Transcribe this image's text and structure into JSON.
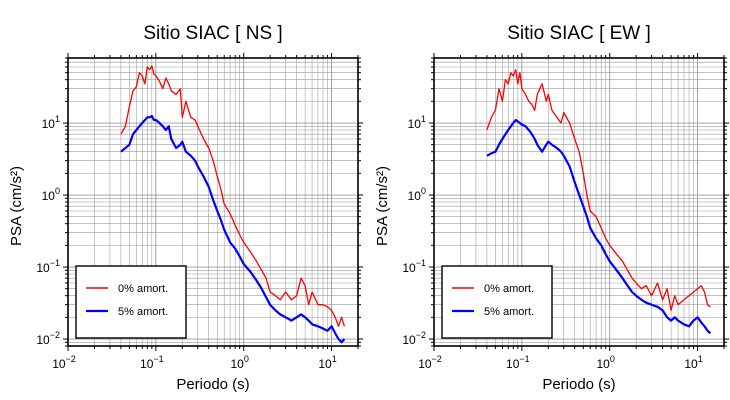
{
  "chart_data": [
    {
      "type": "line",
      "title": "Sitio SIAC [ NS ]",
      "xlabel": "Periodo (s)",
      "ylabel": "PSA (cm/s²)",
      "x_scale": "log",
      "y_scale": "log",
      "xlim": [
        0.01,
        20
      ],
      "ylim": [
        0.008,
        80
      ],
      "grid": true,
      "legend_position": "lower-left",
      "x_ticks": [
        {
          "value": 0.01,
          "base": "10",
          "exp": "−2"
        },
        {
          "value": 0.1,
          "base": "10",
          "exp": "−1"
        },
        {
          "value": 1,
          "base": "10",
          "exp": "0"
        },
        {
          "value": 10,
          "base": "10",
          "exp": "1"
        }
      ],
      "y_ticks": [
        {
          "value": 0.01,
          "base": "10",
          "exp": "−2"
        },
        {
          "value": 0.1,
          "base": "10",
          "exp": "−1"
        },
        {
          "value": 1,
          "base": "10",
          "exp": "0"
        },
        {
          "value": 10,
          "base": "10",
          "exp": "1"
        }
      ],
      "series": [
        {
          "name": "0% amort.",
          "color": "#ff0000",
          "x": [
            0.04,
            0.045,
            0.05,
            0.055,
            0.06,
            0.065,
            0.07,
            0.075,
            0.08,
            0.085,
            0.09,
            0.095,
            0.1,
            0.11,
            0.12,
            0.13,
            0.14,
            0.15,
            0.17,
            0.19,
            0.2,
            0.22,
            0.25,
            0.28,
            0.3,
            0.35,
            0.4,
            0.45,
            0.5,
            0.55,
            0.6,
            0.7,
            0.8,
            0.9,
            1.0,
            1.2,
            1.4,
            1.6,
            1.8,
            2.0,
            2.3,
            2.6,
            3.0,
            3.5,
            4.0,
            4.5,
            5.0,
            5.5,
            6.0,
            7.0,
            8.0,
            9.0,
            10.0,
            11.0,
            12.0,
            13.0,
            14.0
          ],
          "y": [
            7,
            9,
            17,
            28,
            32,
            50,
            45,
            35,
            60,
            55,
            62,
            48,
            45,
            38,
            30,
            42,
            35,
            28,
            25,
            30,
            12,
            20,
            12,
            11,
            9,
            6,
            4.5,
            3.0,
            1.8,
            1.2,
            0.75,
            0.55,
            0.38,
            0.28,
            0.22,
            0.16,
            0.12,
            0.09,
            0.07,
            0.045,
            0.04,
            0.035,
            0.045,
            0.035,
            0.04,
            0.07,
            0.055,
            0.03,
            0.045,
            0.03,
            0.03,
            0.028,
            0.025,
            0.02,
            0.015,
            0.02,
            0.015
          ]
        },
        {
          "name": "5% amort.",
          "color": "#0000ff",
          "x": [
            0.04,
            0.045,
            0.05,
            0.055,
            0.06,
            0.065,
            0.07,
            0.075,
            0.08,
            0.085,
            0.09,
            0.095,
            0.1,
            0.11,
            0.12,
            0.13,
            0.14,
            0.15,
            0.17,
            0.19,
            0.2,
            0.22,
            0.25,
            0.28,
            0.3,
            0.35,
            0.4,
            0.45,
            0.5,
            0.55,
            0.6,
            0.7,
            0.8,
            0.9,
            1.0,
            1.2,
            1.4,
            1.6,
            1.8,
            2.0,
            2.3,
            2.6,
            3.0,
            3.5,
            4.0,
            4.5,
            5.0,
            5.5,
            6.0,
            7.0,
            8.0,
            9.0,
            10.0,
            11.0,
            12.0,
            13.0,
            14.0
          ],
          "y": [
            4,
            4.5,
            5,
            7,
            8,
            9,
            10,
            11,
            12,
            12,
            12.5,
            11,
            11,
            10,
            9,
            8,
            9,
            6,
            4.5,
            5,
            5.5,
            4,
            3.5,
            3.0,
            2.5,
            1.8,
            1.3,
            0.85,
            0.6,
            0.45,
            0.33,
            0.22,
            0.18,
            0.14,
            0.11,
            0.085,
            0.065,
            0.05,
            0.038,
            0.03,
            0.025,
            0.022,
            0.02,
            0.018,
            0.02,
            0.022,
            0.02,
            0.018,
            0.016,
            0.015,
            0.014,
            0.013,
            0.015,
            0.012,
            0.01,
            0.009,
            0.01
          ]
        }
      ]
    },
    {
      "type": "line",
      "title": "Sitio SIAC [ EW ]",
      "xlabel": "Periodo (s)",
      "ylabel": "PSA (cm/s²)",
      "x_scale": "log",
      "y_scale": "log",
      "xlim": [
        0.01,
        20
      ],
      "ylim": [
        0.008,
        80
      ],
      "grid": true,
      "legend_position": "lower-left",
      "x_ticks": [
        {
          "value": 0.01,
          "base": "10",
          "exp": "−2"
        },
        {
          "value": 0.1,
          "base": "10",
          "exp": "−1"
        },
        {
          "value": 1,
          "base": "10",
          "exp": "0"
        },
        {
          "value": 10,
          "base": "10",
          "exp": "1"
        }
      ],
      "y_ticks": [
        {
          "value": 0.01,
          "base": "10",
          "exp": "−2"
        },
        {
          "value": 0.1,
          "base": "10",
          "exp": "−1"
        },
        {
          "value": 1,
          "base": "10",
          "exp": "0"
        },
        {
          "value": 10,
          "base": "10",
          "exp": "1"
        }
      ],
      "series": [
        {
          "name": "0% amort.",
          "color": "#ff0000",
          "x": [
            0.04,
            0.045,
            0.05,
            0.055,
            0.06,
            0.065,
            0.07,
            0.075,
            0.08,
            0.085,
            0.09,
            0.095,
            0.1,
            0.11,
            0.12,
            0.13,
            0.14,
            0.15,
            0.17,
            0.19,
            0.2,
            0.22,
            0.25,
            0.28,
            0.3,
            0.35,
            0.4,
            0.45,
            0.5,
            0.55,
            0.6,
            0.7,
            0.8,
            0.9,
            1.0,
            1.2,
            1.4,
            1.6,
            1.8,
            2.0,
            2.3,
            2.6,
            3.0,
            3.5,
            4.0,
            4.5,
            5.0,
            5.5,
            6.0,
            7.0,
            8.0,
            9.0,
            10.0,
            11.0,
            12.0,
            13.0,
            14.0
          ],
          "y": [
            8,
            12,
            15,
            30,
            20,
            40,
            35,
            50,
            45,
            55,
            35,
            50,
            30,
            25,
            20,
            18,
            15,
            25,
            35,
            20,
            25,
            15,
            12,
            10,
            14,
            10,
            6,
            4,
            2.0,
            1.0,
            0.6,
            0.5,
            0.35,
            0.25,
            0.2,
            0.15,
            0.12,
            0.09,
            0.07,
            0.06,
            0.05,
            0.055,
            0.04,
            0.06,
            0.035,
            0.05,
            0.025,
            0.04,
            0.03,
            0.035,
            0.04,
            0.045,
            0.05,
            0.055,
            0.045,
            0.03,
            0.028
          ]
        },
        {
          "name": "5% amort.",
          "color": "#0000ff",
          "x": [
            0.04,
            0.045,
            0.05,
            0.055,
            0.06,
            0.065,
            0.07,
            0.075,
            0.08,
            0.085,
            0.09,
            0.095,
            0.1,
            0.11,
            0.12,
            0.13,
            0.14,
            0.15,
            0.17,
            0.19,
            0.2,
            0.22,
            0.25,
            0.28,
            0.3,
            0.35,
            0.4,
            0.45,
            0.5,
            0.55,
            0.6,
            0.7,
            0.8,
            0.9,
            1.0,
            1.2,
            1.4,
            1.6,
            1.8,
            2.0,
            2.3,
            2.6,
            3.0,
            3.5,
            4.0,
            4.5,
            5.0,
            5.5,
            6.0,
            7.0,
            8.0,
            9.0,
            10.0,
            11.0,
            12.0,
            13.0,
            14.0
          ],
          "y": [
            3.5,
            3.8,
            4,
            5,
            6,
            7,
            8,
            9,
            10,
            11,
            10.5,
            10,
            9.5,
            9,
            8,
            7,
            6,
            5,
            4,
            5,
            5.5,
            5,
            4.5,
            4,
            3.5,
            2.5,
            1.5,
            1.0,
            0.7,
            0.5,
            0.35,
            0.25,
            0.2,
            0.15,
            0.12,
            0.09,
            0.07,
            0.055,
            0.045,
            0.04,
            0.035,
            0.032,
            0.03,
            0.028,
            0.025,
            0.02,
            0.018,
            0.02,
            0.018,
            0.016,
            0.015,
            0.018,
            0.02,
            0.017,
            0.015,
            0.013,
            0.012
          ]
        }
      ]
    }
  ]
}
